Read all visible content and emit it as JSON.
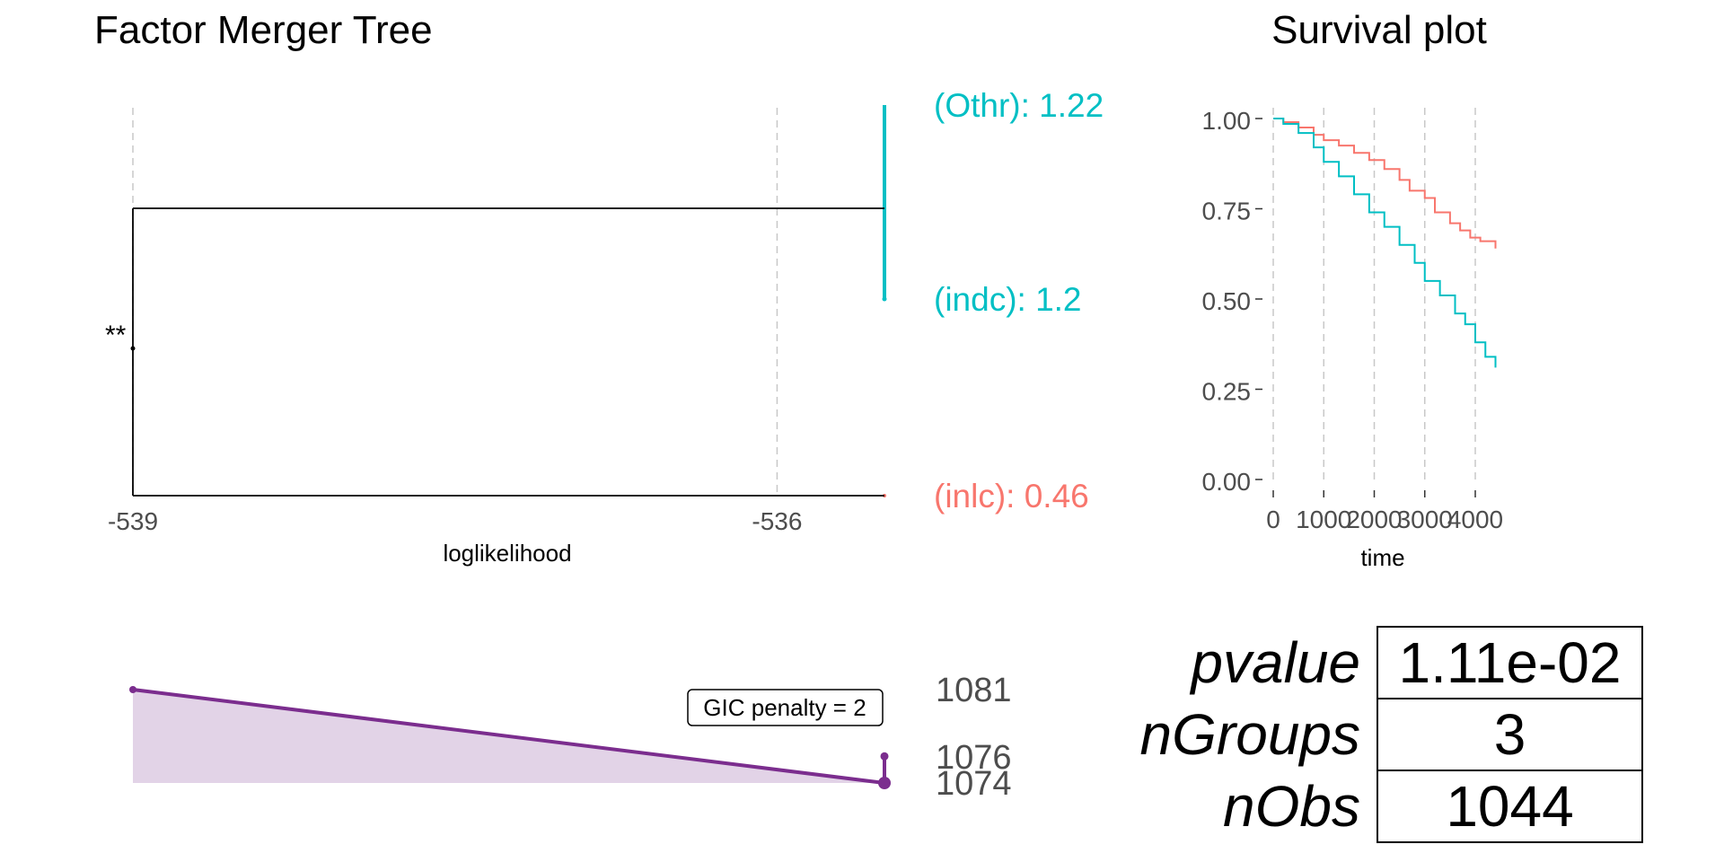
{
  "colors": {
    "teal": "#00bfc4",
    "salmon": "#f8766d",
    "purple": "#7b2d8e",
    "purple_fill": "#e2d3e7",
    "grid": "#c8c8c8",
    "axis": "#000000",
    "tick_text": "#4d4d4d"
  },
  "chart_data": [
    {
      "type": "tree",
      "title": "Factor Merger Tree",
      "xlabel": "loglikelihood",
      "xlim": [
        -539,
        -535.4
      ],
      "x_ticks": [
        -539,
        -536
      ],
      "x_tick_labels": [
        "-539",
        "-536"
      ],
      "grid": true,
      "leaves": [
        {
          "label": "(Othr): 1.22",
          "color": "#00bfc4",
          "value": 1.22
        },
        {
          "label": "(indc): 1.2",
          "color": "#00bfc4",
          "value": 1.2
        },
        {
          "label": "(inlc): 0.46",
          "color": "#f8766d",
          "value": 0.46
        }
      ],
      "merges": [
        {
          "members": [
            "(Othr): 1.22",
            "(indc): 1.2"
          ],
          "loglik": -535.5
        },
        {
          "members": [
            "(Othr)+(indc)",
            "(inlc): 0.46"
          ],
          "loglik": -539,
          "annotation": "**"
        }
      ]
    },
    {
      "type": "area",
      "title": "",
      "xlabel": "",
      "ylabel": "",
      "annotation": "GIC penalty = 2",
      "x": [
        -539,
        -535.5,
        -535.5
      ],
      "y": [
        1081,
        1074,
        1076
      ],
      "y_tick_labels": [
        "1081",
        "1076",
        "1074"
      ],
      "xlim": [
        -539,
        -535.4
      ]
    },
    {
      "type": "line",
      "title": "Survival plot",
      "xlabel": "time",
      "ylabel": "",
      "xlim": [
        0,
        4400
      ],
      "ylim": [
        0,
        1
      ],
      "x_ticks": [
        0,
        1000,
        2000,
        3000,
        4000
      ],
      "x_tick_labels": [
        "0",
        "1000",
        "2000",
        "3000",
        "4000"
      ],
      "y_ticks": [
        0,
        0.25,
        0.5,
        0.75,
        1.0
      ],
      "y_tick_labels": [
        "0.00",
        "0.25",
        "0.50",
        "0.75",
        "1.00"
      ],
      "grid": true,
      "series": [
        {
          "color": "#f8766d",
          "x": [
            0,
            200,
            500,
            800,
            1000,
            1300,
            1600,
            1900,
            2200,
            2500,
            2700,
            3000,
            3200,
            3500,
            3700,
            3900,
            4100,
            4400
          ],
          "y": [
            1.0,
            0.99,
            0.975,
            0.955,
            0.94,
            0.925,
            0.905,
            0.885,
            0.86,
            0.83,
            0.8,
            0.78,
            0.74,
            0.71,
            0.69,
            0.67,
            0.66,
            0.64
          ]
        },
        {
          "color": "#00bfc4",
          "x": [
            0,
            200,
            500,
            800,
            1000,
            1300,
            1600,
            1900,
            2200,
            2500,
            2800,
            3000,
            3300,
            3600,
            3800,
            4000,
            4200,
            4400
          ],
          "y": [
            1.0,
            0.985,
            0.96,
            0.92,
            0.88,
            0.84,
            0.79,
            0.74,
            0.7,
            0.65,
            0.6,
            0.55,
            0.51,
            0.46,
            0.43,
            0.38,
            0.34,
            0.31
          ]
        }
      ]
    },
    {
      "type": "table",
      "rows": [
        {
          "label": "pvalue",
          "value": "1.11e-02"
        },
        {
          "label": "nGroups",
          "value": "3"
        },
        {
          "label": "nObs",
          "value": "1044"
        }
      ]
    }
  ]
}
